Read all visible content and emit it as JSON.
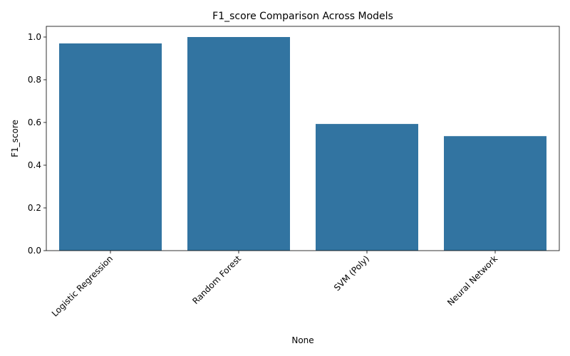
{
  "chart_data": {
    "type": "bar",
    "title": "F1_score Comparison Across Models",
    "xlabel": "None",
    "ylabel": "F1_score",
    "categories": [
      "Logistic Regression",
      "Random Forest",
      "SVM (Poly)",
      "Neural Network"
    ],
    "values": [
      0.97,
      1.0,
      0.593,
      0.536
    ],
    "ylim": [
      0,
      1.05
    ],
    "yticks": [
      0.0,
      0.2,
      0.4,
      0.6,
      0.8,
      1.0
    ],
    "ytick_labels": [
      "0.0",
      "0.2",
      "0.4",
      "0.6",
      "0.8",
      "1.0"
    ],
    "bar_color": "#3274a1",
    "grid": false,
    "xtick_rotation_deg": 45
  }
}
